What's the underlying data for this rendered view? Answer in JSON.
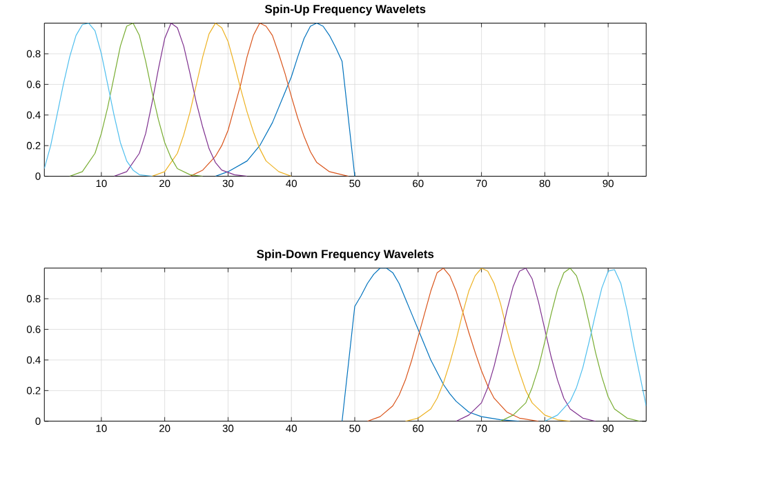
{
  "chart_data": [
    {
      "type": "line",
      "title": "Spin-Up Frequency Wavelets",
      "xlim": [
        1,
        96
      ],
      "xticks": [
        10,
        20,
        30,
        40,
        50,
        60,
        70,
        80,
        90
      ],
      "ylim": [
        0,
        1
      ],
      "yticks": [
        0,
        0.2,
        0.4,
        0.6,
        0.8
      ],
      "grid": true,
      "series": [
        {
          "color": "#0072bd",
          "x": [
            28,
            30,
            33,
            35,
            37,
            39,
            40,
            41,
            42,
            43,
            44,
            45,
            46,
            47,
            48,
            50
          ],
          "values": [
            0,
            0.03,
            0.1,
            0.2,
            0.35,
            0.55,
            0.65,
            0.78,
            0.9,
            0.98,
            1.0,
            0.98,
            0.92,
            0.84,
            0.75,
            0
          ]
        },
        {
          "color": "#d95319",
          "x": [
            24,
            26,
            28,
            29,
            30,
            31,
            32,
            33,
            34,
            35,
            36,
            37,
            38,
            39,
            40,
            41,
            42,
            43,
            44,
            46,
            48,
            49
          ],
          "values": [
            0,
            0.04,
            0.13,
            0.2,
            0.3,
            0.45,
            0.6,
            0.78,
            0.92,
            1.0,
            0.98,
            0.92,
            0.8,
            0.67,
            0.52,
            0.38,
            0.26,
            0.16,
            0.09,
            0.03,
            0.01,
            0
          ]
        },
        {
          "color": "#edb120",
          "x": [
            18,
            20,
            22,
            23,
            24,
            25,
            26,
            27,
            28,
            29,
            30,
            31,
            32,
            33,
            34,
            35,
            36,
            38,
            40
          ],
          "values": [
            0,
            0.03,
            0.15,
            0.27,
            0.42,
            0.6,
            0.78,
            0.93,
            1.0,
            0.97,
            0.88,
            0.73,
            0.57,
            0.42,
            0.29,
            0.18,
            0.1,
            0.03,
            0
          ]
        },
        {
          "color": "#7e2f8e",
          "x": [
            12,
            14,
            16,
            17,
            18,
            19,
            20,
            21,
            22,
            23,
            24,
            25,
            26,
            27,
            28,
            29,
            31,
            33
          ],
          "values": [
            0,
            0.03,
            0.15,
            0.28,
            0.48,
            0.7,
            0.9,
            1.0,
            0.97,
            0.85,
            0.67,
            0.48,
            0.32,
            0.18,
            0.09,
            0.04,
            0.01,
            0
          ]
        },
        {
          "color": "#77ac30",
          "x": [
            5,
            7,
            9,
            10,
            11,
            12,
            13,
            14,
            15,
            16,
            17,
            18,
            19,
            20,
            21,
            22,
            24,
            26
          ],
          "values": [
            0,
            0.03,
            0.15,
            0.28,
            0.45,
            0.65,
            0.85,
            0.98,
            1.0,
            0.92,
            0.75,
            0.55,
            0.37,
            0.22,
            0.12,
            0.05,
            0.01,
            0
          ]
        },
        {
          "color": "#4dbeee",
          "x": [
            1,
            2,
            3,
            4,
            5,
            6,
            7,
            8,
            9,
            10,
            11,
            12,
            13,
            14,
            15,
            16,
            18
          ],
          "values": [
            0.05,
            0.2,
            0.4,
            0.6,
            0.78,
            0.92,
            0.99,
            1.0,
            0.95,
            0.8,
            0.6,
            0.4,
            0.22,
            0.1,
            0.04,
            0.01,
            0
          ]
        }
      ]
    },
    {
      "type": "line",
      "title": "Spin-Down Frequency Wavelets",
      "xlim": [
        1,
        96
      ],
      "xticks": [
        10,
        20,
        30,
        40,
        50,
        60,
        70,
        80,
        90
      ],
      "ylim": [
        0,
        1
      ],
      "yticks": [
        0,
        0.2,
        0.4,
        0.6,
        0.8
      ],
      "grid": true,
      "series": [
        {
          "color": "#0072bd",
          "x": [
            48,
            50,
            51,
            52,
            53,
            54,
            55,
            56,
            57,
            58,
            59,
            60,
            61,
            62,
            63,
            64,
            65,
            66,
            68,
            70,
            73,
            76
          ],
          "values": [
            0,
            0.75,
            0.82,
            0.9,
            0.96,
            1.0,
            1.0,
            0.97,
            0.9,
            0.8,
            0.7,
            0.6,
            0.5,
            0.4,
            0.32,
            0.24,
            0.18,
            0.13,
            0.06,
            0.03,
            0.01,
            0
          ]
        },
        {
          "color": "#d95319",
          "x": [
            52,
            54,
            56,
            57,
            58,
            59,
            60,
            61,
            62,
            63,
            64,
            65,
            66,
            67,
            68,
            69,
            70,
            71,
            72,
            74,
            76,
            79
          ],
          "values": [
            0,
            0.03,
            0.1,
            0.17,
            0.27,
            0.4,
            0.55,
            0.7,
            0.85,
            0.97,
            1.0,
            0.95,
            0.85,
            0.72,
            0.58,
            0.45,
            0.33,
            0.23,
            0.15,
            0.06,
            0.02,
            0
          ]
        },
        {
          "color": "#edb120",
          "x": [
            58,
            60,
            62,
            63,
            64,
            65,
            66,
            67,
            68,
            69,
            70,
            71,
            72,
            73,
            74,
            75,
            76,
            77,
            78,
            80,
            82,
            84
          ],
          "values": [
            0,
            0.02,
            0.08,
            0.15,
            0.25,
            0.38,
            0.53,
            0.7,
            0.85,
            0.95,
            1.0,
            0.98,
            0.9,
            0.77,
            0.6,
            0.45,
            0.32,
            0.2,
            0.12,
            0.04,
            0.01,
            0
          ]
        },
        {
          "color": "#7e2f8e",
          "x": [
            66,
            68,
            70,
            71,
            72,
            73,
            74,
            75,
            76,
            77,
            78,
            79,
            80,
            81,
            82,
            83,
            84,
            86,
            88
          ],
          "values": [
            0,
            0.04,
            0.12,
            0.22,
            0.36,
            0.53,
            0.72,
            0.88,
            0.98,
            1.0,
            0.93,
            0.78,
            0.6,
            0.42,
            0.27,
            0.15,
            0.08,
            0.02,
            0
          ]
        },
        {
          "color": "#77ac30",
          "x": [
            73,
            75,
            77,
            78,
            79,
            80,
            81,
            82,
            83,
            84,
            85,
            86,
            87,
            88,
            89,
            90,
            91,
            93,
            95
          ],
          "values": [
            0,
            0.04,
            0.12,
            0.22,
            0.35,
            0.52,
            0.7,
            0.86,
            0.97,
            1.0,
            0.95,
            0.82,
            0.64,
            0.45,
            0.29,
            0.16,
            0.08,
            0.02,
            0
          ]
        },
        {
          "color": "#4dbeee",
          "x": [
            80,
            82,
            84,
            85,
            86,
            87,
            88,
            89,
            90,
            91,
            92,
            93,
            94,
            95,
            96
          ],
          "values": [
            0,
            0.04,
            0.13,
            0.22,
            0.35,
            0.52,
            0.7,
            0.87,
            0.98,
            0.99,
            0.9,
            0.72,
            0.5,
            0.3,
            0.1
          ]
        }
      ]
    }
  ]
}
